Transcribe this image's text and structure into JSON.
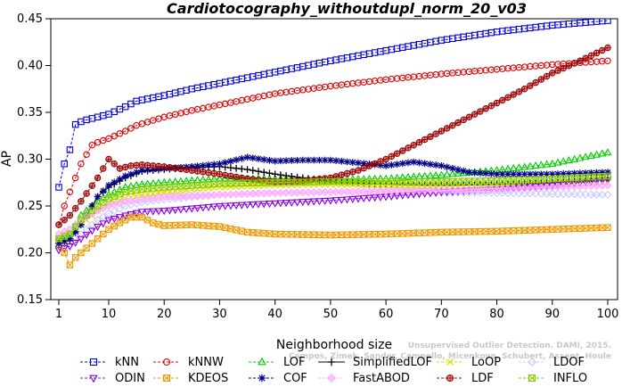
{
  "chart_data": {
    "type": "line",
    "title": "Cardiotocography_withoutdupl_norm_20_v03",
    "xlabel": "Neighborhood size",
    "ylabel": "AP",
    "xlim": [
      0,
      100
    ],
    "ylim": [
      0.15,
      0.45
    ],
    "x_ticks": [
      1,
      10,
      20,
      30,
      40,
      50,
      60,
      70,
      80,
      90,
      100
    ],
    "y_ticks": [
      "0.15",
      "0.20",
      "0.25",
      "0.30",
      "0.35",
      "0.40",
      "0.45"
    ],
    "grid": false,
    "legend_position": "bottom",
    "watermark_lines": [
      "Unsupervised Outlier Detection. DAMI, 2015.",
      "Campos, Zimek, Sander, Campello, Micenkova, Schubert, Assent, Houle"
    ],
    "series": [
      {
        "name": "kNN",
        "color": "#0000dd",
        "marker": "square",
        "dash": true,
        "points": [
          [
            1,
            0.27
          ],
          [
            2,
            0.295
          ],
          [
            3,
            0.31
          ],
          [
            4,
            0.337
          ],
          [
            5,
            0.34
          ],
          [
            6,
            0.342
          ],
          [
            8,
            0.345
          ],
          [
            10,
            0.348
          ],
          [
            13,
            0.356
          ],
          [
            15,
            0.362
          ],
          [
            20,
            0.368
          ],
          [
            25,
            0.375
          ],
          [
            30,
            0.381
          ],
          [
            40,
            0.393
          ],
          [
            50,
            0.405
          ],
          [
            60,
            0.416
          ],
          [
            70,
            0.427
          ],
          [
            80,
            0.436
          ],
          [
            90,
            0.443
          ],
          [
            100,
            0.448
          ]
        ]
      },
      {
        "name": "kNNW",
        "color": "#dd0000",
        "marker": "circle",
        "dash": true,
        "points": [
          [
            1,
            0.23
          ],
          [
            2,
            0.25
          ],
          [
            3,
            0.265
          ],
          [
            4,
            0.28
          ],
          [
            5,
            0.295
          ],
          [
            6,
            0.305
          ],
          [
            7,
            0.315
          ],
          [
            8,
            0.318
          ],
          [
            10,
            0.322
          ],
          [
            13,
            0.33
          ],
          [
            15,
            0.336
          ],
          [
            20,
            0.345
          ],
          [
            25,
            0.352
          ],
          [
            30,
            0.358
          ],
          [
            40,
            0.37
          ],
          [
            50,
            0.378
          ],
          [
            60,
            0.385
          ],
          [
            70,
            0.391
          ],
          [
            80,
            0.396
          ],
          [
            90,
            0.401
          ],
          [
            100,
            0.405
          ]
        ]
      },
      {
        "name": "LOF",
        "color": "#00cc00",
        "marker": "triangle",
        "dash": true,
        "points": [
          [
            1,
            0.215
          ],
          [
            3,
            0.22
          ],
          [
            5,
            0.24
          ],
          [
            8,
            0.255
          ],
          [
            10,
            0.262
          ],
          [
            13,
            0.27
          ],
          [
            16,
            0.273
          ],
          [
            20,
            0.275
          ],
          [
            30,
            0.279
          ],
          [
            40,
            0.279
          ],
          [
            50,
            0.278
          ],
          [
            60,
            0.279
          ],
          [
            70,
            0.283
          ],
          [
            80,
            0.288
          ],
          [
            90,
            0.295
          ],
          [
            100,
            0.307
          ]
        ]
      },
      {
        "name": "SimplifiedLOF",
        "color": "#000000",
        "marker": "plus",
        "dash": false,
        "points": [
          [
            1,
            0.207
          ],
          [
            3,
            0.213
          ],
          [
            5,
            0.23
          ],
          [
            8,
            0.26
          ],
          [
            10,
            0.27
          ],
          [
            13,
            0.28
          ],
          [
            16,
            0.287
          ],
          [
            20,
            0.289
          ],
          [
            25,
            0.291
          ],
          [
            30,
            0.292
          ],
          [
            35,
            0.289
          ],
          [
            40,
            0.284
          ],
          [
            45,
            0.28
          ],
          [
            50,
            0.276
          ],
          [
            60,
            0.273
          ],
          [
            70,
            0.272
          ],
          [
            80,
            0.273
          ],
          [
            90,
            0.275
          ],
          [
            100,
            0.279
          ]
        ]
      },
      {
        "name": "LoOP",
        "color": "#dddd00",
        "marker": "x",
        "dash": true,
        "points": [
          [
            1,
            0.205
          ],
          [
            3,
            0.215
          ],
          [
            5,
            0.23
          ],
          [
            8,
            0.245
          ],
          [
            10,
            0.252
          ],
          [
            13,
            0.258
          ],
          [
            16,
            0.262
          ],
          [
            20,
            0.265
          ],
          [
            30,
            0.27
          ],
          [
            40,
            0.272
          ],
          [
            50,
            0.273
          ],
          [
            60,
            0.272
          ],
          [
            70,
            0.271
          ],
          [
            80,
            0.272
          ],
          [
            90,
            0.273
          ],
          [
            100,
            0.275
          ]
        ]
      },
      {
        "name": "LDOF",
        "color": "#c8c8ff",
        "marker": "diamond",
        "dash": true,
        "points": [
          [
            1,
            0.21
          ],
          [
            3,
            0.212
          ],
          [
            5,
            0.22
          ],
          [
            8,
            0.235
          ],
          [
            10,
            0.242
          ],
          [
            13,
            0.25
          ],
          [
            16,
            0.254
          ],
          [
            20,
            0.257
          ],
          [
            30,
            0.262
          ],
          [
            40,
            0.264
          ],
          [
            50,
            0.265
          ],
          [
            60,
            0.265
          ],
          [
            70,
            0.264
          ],
          [
            80,
            0.264
          ],
          [
            90,
            0.263
          ],
          [
            100,
            0.262
          ]
        ]
      },
      {
        "name": "ODIN",
        "color": "#8800dd",
        "marker": "triangle-down",
        "dash": true,
        "points": [
          [
            1,
            0.203
          ],
          [
            3,
            0.207
          ],
          [
            5,
            0.215
          ],
          [
            8,
            0.228
          ],
          [
            10,
            0.235
          ],
          [
            13,
            0.24
          ],
          [
            16,
            0.244
          ],
          [
            20,
            0.245
          ],
          [
            30,
            0.25
          ],
          [
            40,
            0.253
          ],
          [
            50,
            0.256
          ],
          [
            60,
            0.26
          ],
          [
            70,
            0.265
          ],
          [
            80,
            0.268
          ],
          [
            90,
            0.272
          ],
          [
            100,
            0.278
          ]
        ]
      },
      {
        "name": "KDEOS",
        "color": "#ee9900",
        "marker": "square-x",
        "dash": true,
        "points": [
          [
            1,
            0.215
          ],
          [
            2,
            0.2
          ],
          [
            3,
            0.187
          ],
          [
            4,
            0.195
          ],
          [
            6,
            0.205
          ],
          [
            8,
            0.215
          ],
          [
            10,
            0.225
          ],
          [
            12,
            0.232
          ],
          [
            14,
            0.238
          ],
          [
            16,
            0.238
          ],
          [
            18,
            0.232
          ],
          [
            20,
            0.229
          ],
          [
            25,
            0.23
          ],
          [
            30,
            0.228
          ],
          [
            35,
            0.222
          ],
          [
            40,
            0.22
          ],
          [
            50,
            0.219
          ],
          [
            60,
            0.22
          ],
          [
            70,
            0.222
          ],
          [
            80,
            0.223
          ],
          [
            90,
            0.225
          ],
          [
            100,
            0.227
          ]
        ]
      },
      {
        "name": "COF",
        "color": "#000088",
        "marker": "star",
        "dash": true,
        "points": [
          [
            1,
            0.21
          ],
          [
            3,
            0.215
          ],
          [
            5,
            0.23
          ],
          [
            8,
            0.26
          ],
          [
            10,
            0.272
          ],
          [
            13,
            0.282
          ],
          [
            16,
            0.288
          ],
          [
            20,
            0.29
          ],
          [
            25,
            0.292
          ],
          [
            30,
            0.295
          ],
          [
            35,
            0.302
          ],
          [
            40,
            0.298
          ],
          [
            45,
            0.299
          ],
          [
            50,
            0.299
          ],
          [
            55,
            0.296
          ],
          [
            60,
            0.293
          ],
          [
            65,
            0.297
          ],
          [
            70,
            0.293
          ],
          [
            75,
            0.286
          ],
          [
            80,
            0.284
          ],
          [
            90,
            0.284
          ],
          [
            100,
            0.286
          ]
        ]
      },
      {
        "name": "FastABOD",
        "color": "#ffaaff",
        "marker": "diamond-fill",
        "dash": true,
        "points": [
          [
            1,
            0.22
          ],
          [
            3,
            0.225
          ],
          [
            5,
            0.235
          ],
          [
            8,
            0.245
          ],
          [
            10,
            0.25
          ],
          [
            13,
            0.255
          ],
          [
            16,
            0.257
          ],
          [
            20,
            0.26
          ],
          [
            30,
            0.262
          ],
          [
            40,
            0.264
          ],
          [
            50,
            0.265
          ],
          [
            60,
            0.266
          ],
          [
            70,
            0.267
          ],
          [
            80,
            0.268
          ],
          [
            90,
            0.27
          ],
          [
            100,
            0.272
          ]
        ]
      },
      {
        "name": "LDF",
        "color": "#990000",
        "marker": "circle-fill",
        "dash": true,
        "points": [
          [
            1,
            0.23
          ],
          [
            3,
            0.24
          ],
          [
            5,
            0.255
          ],
          [
            8,
            0.28
          ],
          [
            10,
            0.3
          ],
          [
            12,
            0.29
          ],
          [
            14,
            0.293
          ],
          [
            16,
            0.294
          ],
          [
            20,
            0.292
          ],
          [
            25,
            0.288
          ],
          [
            30,
            0.284
          ],
          [
            35,
            0.279
          ],
          [
            40,
            0.276
          ],
          [
            45,
            0.277
          ],
          [
            50,
            0.28
          ],
          [
            55,
            0.288
          ],
          [
            60,
            0.3
          ],
          [
            65,
            0.315
          ],
          [
            70,
            0.33
          ],
          [
            75,
            0.345
          ],
          [
            80,
            0.36
          ],
          [
            85,
            0.375
          ],
          [
            90,
            0.392
          ],
          [
            95,
            0.405
          ],
          [
            100,
            0.419
          ]
        ]
      },
      {
        "name": "INFLO",
        "color": "#88cc00",
        "marker": "square-x",
        "dash": true,
        "points": [
          [
            1,
            0.215
          ],
          [
            3,
            0.22
          ],
          [
            5,
            0.235
          ],
          [
            8,
            0.25
          ],
          [
            10,
            0.258
          ],
          [
            13,
            0.265
          ],
          [
            16,
            0.268
          ],
          [
            20,
            0.27
          ],
          [
            30,
            0.274
          ],
          [
            40,
            0.275
          ],
          [
            50,
            0.276
          ],
          [
            60,
            0.276
          ],
          [
            70,
            0.276
          ],
          [
            80,
            0.277
          ],
          [
            90,
            0.279
          ],
          [
            100,
            0.282
          ]
        ]
      }
    ]
  }
}
